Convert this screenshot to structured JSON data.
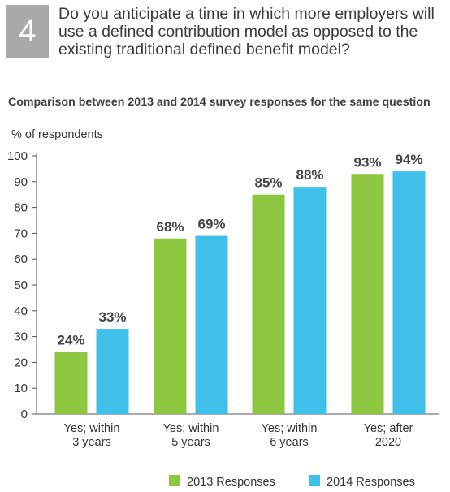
{
  "question": {
    "number": "4",
    "text": "Do you anticipate a time in which more employers will use a defined contribution model as opposed to the existing traditional defined benefit model?"
  },
  "subtitle": "Comparison between 2013 and 2014 survey responses for the same question",
  "chart_data": {
    "type": "bar",
    "ylabel": "% of respondents",
    "xlabel": "",
    "ylim": [
      0,
      100
    ],
    "yticks": [
      0,
      10,
      20,
      30,
      40,
      50,
      60,
      70,
      80,
      90,
      100
    ],
    "grid": false,
    "legend": "bottom",
    "categories": [
      [
        "Yes; within",
        "3 years"
      ],
      [
        "Yes; within",
        "5 years"
      ],
      [
        "Yes; within",
        "6 years"
      ],
      [
        "Yes; after",
        "2020"
      ]
    ],
    "series": [
      {
        "name": "2013 Responses",
        "color": "#8dc63f",
        "values": [
          24,
          68,
          85,
          93
        ],
        "labels": [
          "24%",
          "68%",
          "85%",
          "93%"
        ]
      },
      {
        "name": "2014 Responses",
        "color": "#3fc0e8",
        "values": [
          33,
          69,
          88,
          94
        ],
        "labels": [
          "33%",
          "69%",
          "88%",
          "94%"
        ]
      }
    ]
  }
}
